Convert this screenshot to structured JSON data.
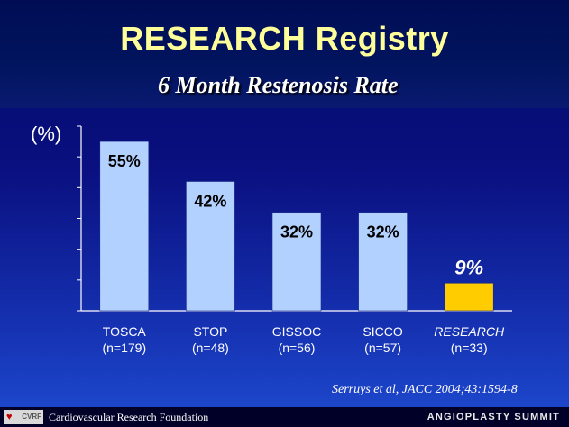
{
  "slide": {
    "title": "RESEARCH  Registry",
    "subtitle": "6 Month Restenosis Rate",
    "citation": "Serruys et al, JACC 2004;43:1594-8",
    "footer_org": "Cardiovascular Research Foundation",
    "footer_event": "ANGIOPLASTY SUMMIT",
    "logo_text": "CVRF",
    "logo_icon": "heart-icon"
  },
  "chart_data": {
    "type": "bar",
    "categories": [
      "TOSCA",
      "STOP",
      "GISSOC",
      "SICCO",
      "RESEARCH"
    ],
    "sample_sizes": [
      "(n=179)",
      "(n=48)",
      "(n=56)",
      "(n=57)",
      "(n=33)"
    ],
    "values": [
      55,
      42,
      32,
      32,
      9
    ],
    "data_labels": [
      "55%",
      "42%",
      "32%",
      "32%",
      "9%"
    ],
    "ylabel": "(%)",
    "ylim": [
      0,
      60
    ],
    "yticks": [
      0,
      10,
      20,
      30,
      40,
      50,
      60
    ],
    "tick_labels_shown": false,
    "grid": false,
    "legend": "none",
    "colors": {
      "bar": "#b3d1ff",
      "highlight_bar": "#ffcc00",
      "axis": "#ffffff",
      "label_dark": "#000000",
      "label_light": "#ffffff"
    },
    "highlight_index": 4
  }
}
